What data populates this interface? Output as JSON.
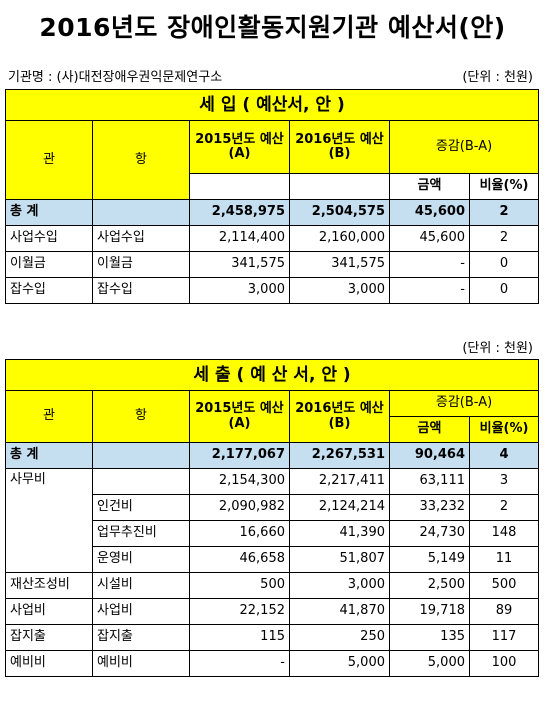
{
  "title": "2016년도 장애인활동지원기관 예산서(안)",
  "org_label": "기관명 : (사)대전장애우권익문제연구소",
  "unit": "(단위 : 천원)",
  "income": {
    "heading": "세            입 ( 예산서, 안 )",
    "headers": {
      "gwan": "관",
      "hang": "항",
      "y2015": "2015년도 예산(A)",
      "y2016": "2016년도 예산(B)",
      "diff": "증감(B-A)",
      "amount": "금액",
      "ratio": "비율(%)"
    },
    "total": {
      "gwan": "총     계",
      "hang": "",
      "y2015": "2,458,975",
      "y2016": "2,504,575",
      "amount": "45,600",
      "ratio": "2"
    },
    "rows": [
      {
        "gwan": "사업수입",
        "hang": "사업수입",
        "y2015": "2,114,400",
        "y2016": "2,160,000",
        "amount": "45,600",
        "ratio": "2"
      },
      {
        "gwan": "이월금",
        "hang": "이월금",
        "y2015": "341,575",
        "y2016": "341,575",
        "amount": "-",
        "ratio": "0"
      },
      {
        "gwan": "잡수입",
        "hang": "잡수입",
        "y2015": "3,000",
        "y2016": "3,000",
        "amount": "-",
        "ratio": "0"
      }
    ]
  },
  "expense": {
    "unit": "(단위 : 천원)",
    "heading": "세            출 ( 예 산 서, 안 )",
    "headers": {
      "gwan": "관",
      "hang": "항",
      "y2015": "2015년도 예산(A)",
      "y2016": "2016년도 예산(B)",
      "diff": "증감(B-A)",
      "amount": "금액",
      "ratio": "비율(%)"
    },
    "total": {
      "gwan": "총     계",
      "hang": "",
      "y2015": "2,177,067",
      "y2016": "2,267,531",
      "amount": "90,464",
      "ratio": "4"
    },
    "rows": [
      {
        "gwan": "사무비",
        "hang": "",
        "y2015": "2,154,300",
        "y2016": "2,217,411",
        "amount": "63,111",
        "ratio": "3"
      },
      {
        "gwan": "",
        "hang": "인건비",
        "y2015": "2,090,982",
        "y2016": "2,124,214",
        "amount": "33,232",
        "ratio": "2"
      },
      {
        "gwan": "",
        "hang": "업무추진비",
        "y2015": "16,660",
        "y2016": "41,390",
        "amount": "24,730",
        "ratio": "148"
      },
      {
        "gwan": "",
        "hang": "운영비",
        "y2015": "46,658",
        "y2016": "51,807",
        "amount": "5,149",
        "ratio": "11"
      },
      {
        "gwan": "재산조성비",
        "hang": "시설비",
        "y2015": "500",
        "y2016": "3,000",
        "amount": "2,500",
        "ratio": "500"
      },
      {
        "gwan": "사업비",
        "hang": "사업비",
        "y2015": "22,152",
        "y2016": "41,870",
        "amount": "19,718",
        "ratio": "89"
      },
      {
        "gwan": "잡지출",
        "hang": "잡지출",
        "y2015": "115",
        "y2016": "250",
        "amount": "135",
        "ratio": "117"
      },
      {
        "gwan": "예비비",
        "hang": "예비비",
        "y2015": "-",
        "y2016": "5,000",
        "amount": "5,000",
        "ratio": "100"
      }
    ]
  }
}
